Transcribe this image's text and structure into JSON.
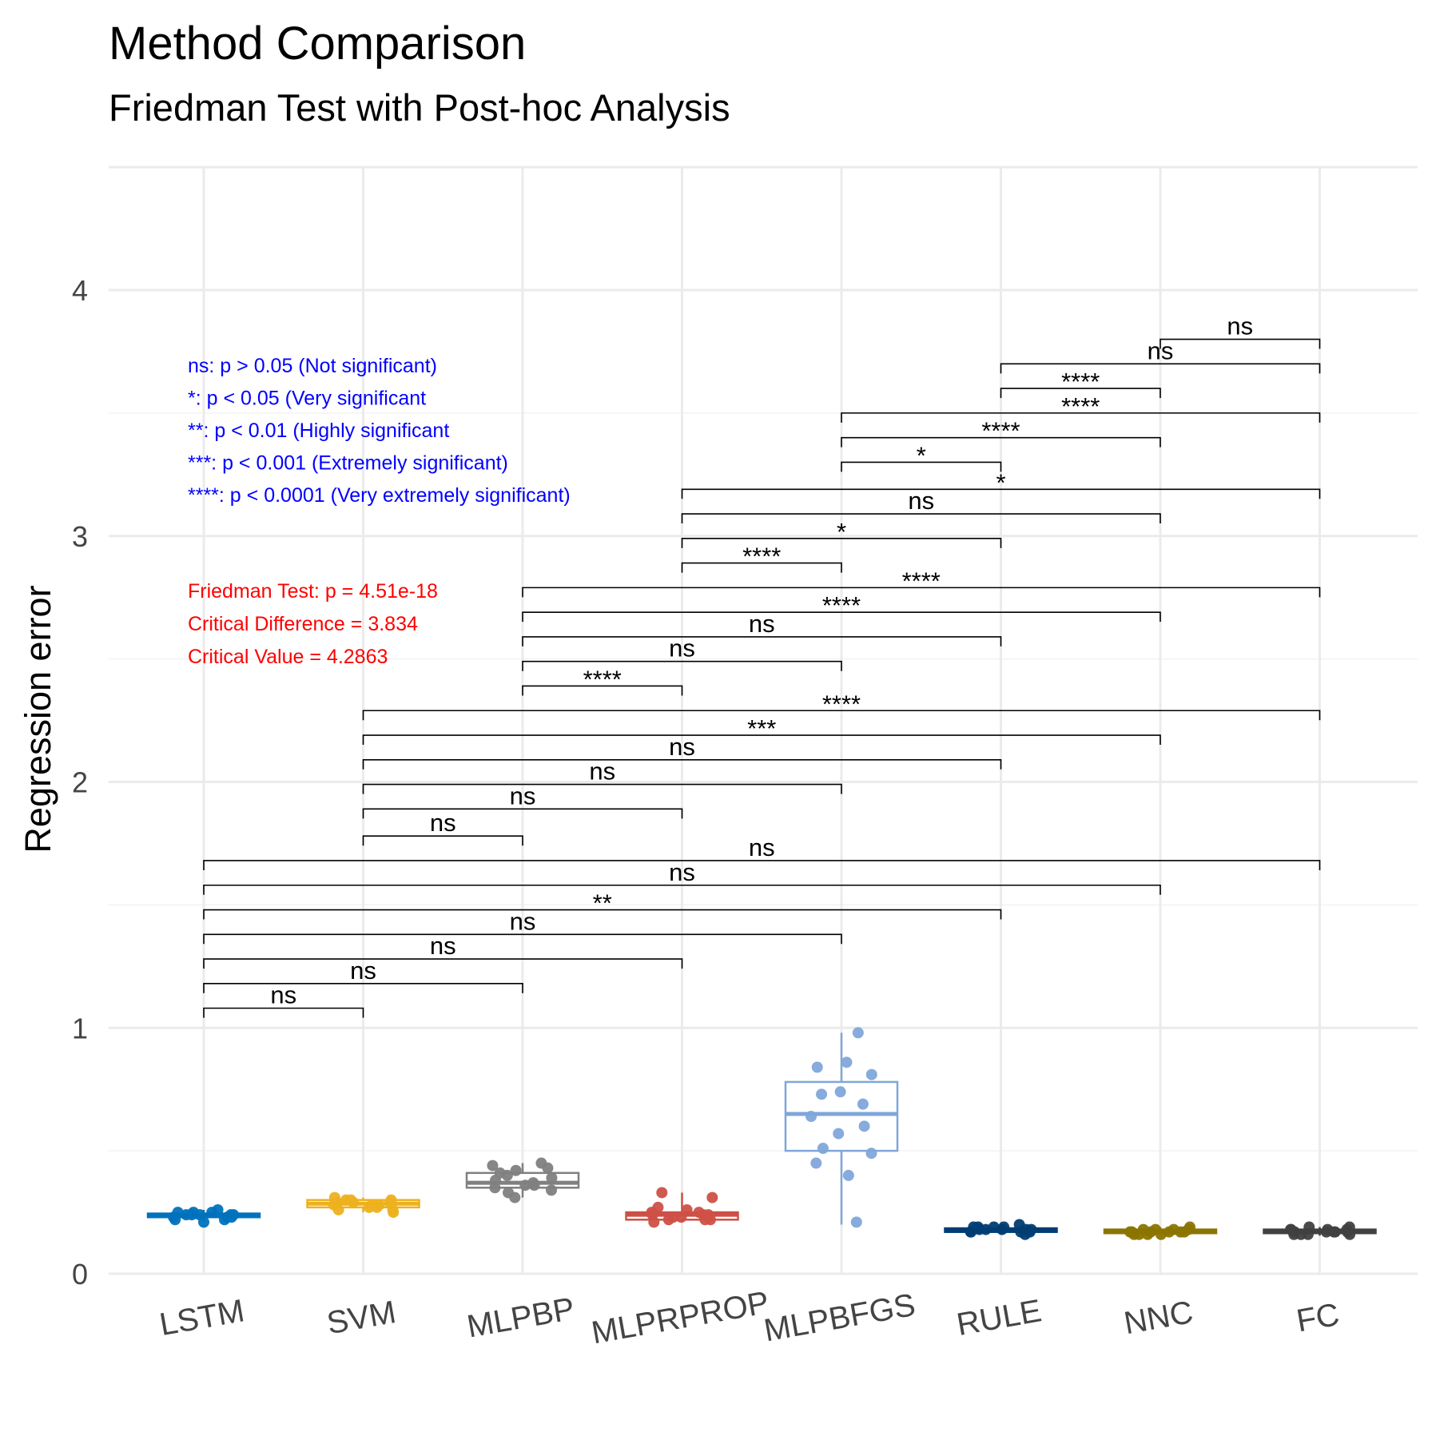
{
  "chart_data": {
    "type": "boxplot",
    "title": "Method Comparison",
    "subtitle": "Friedman Test with Post-hoc Analysis",
    "xlabel": "",
    "ylabel": "Regression error",
    "ylim": [
      0,
      4.5
    ],
    "yticks": [
      0,
      1,
      2,
      3,
      4
    ],
    "grid": true,
    "categories": [
      "LSTM",
      "SVM",
      "MLPBP",
      "MLPRPROP",
      "MLPBFGS",
      "RULE",
      "NNC",
      "FC"
    ],
    "groups": [
      {
        "name": "LSTM",
        "color": "#0072BD",
        "q1": 0.23,
        "median": 0.24,
        "q3": 0.245,
        "min": 0.21,
        "max": 0.26,
        "points": [
          0.21,
          0.22,
          0.23,
          0.23,
          0.24,
          0.24,
          0.24,
          0.25,
          0.25,
          0.26,
          0.22,
          0.23,
          0.24,
          0.25,
          0.24
        ]
      },
      {
        "name": "SVM",
        "color": "#EDB120",
        "q1": 0.27,
        "median": 0.285,
        "q3": 0.3,
        "min": 0.25,
        "max": 0.31,
        "points": [
          0.25,
          0.26,
          0.27,
          0.28,
          0.28,
          0.29,
          0.29,
          0.3,
          0.3,
          0.31,
          0.27,
          0.28,
          0.29,
          0.26,
          0.3
        ]
      },
      {
        "name": "MLPBP",
        "color": "#808080",
        "q1": 0.35,
        "median": 0.37,
        "q3": 0.41,
        "min": 0.31,
        "max": 0.45,
        "points": [
          0.31,
          0.33,
          0.34,
          0.35,
          0.36,
          0.37,
          0.38,
          0.39,
          0.4,
          0.42,
          0.43,
          0.44,
          0.45,
          0.36,
          0.41
        ]
      },
      {
        "name": "MLPRPROP",
        "color": "#CD5047",
        "q1": 0.22,
        "median": 0.24,
        "q3": 0.25,
        "min": 0.21,
        "max": 0.33,
        "points": [
          0.21,
          0.22,
          0.22,
          0.23,
          0.24,
          0.24,
          0.25,
          0.26,
          0.27,
          0.31,
          0.33,
          0.23,
          0.24,
          0.25,
          0.22
        ]
      },
      {
        "name": "MLPBFGS",
        "color": "#7FA6DA",
        "q1": 0.5,
        "median": 0.65,
        "q3": 0.78,
        "min": 0.2,
        "max": 0.98,
        "points": [
          0.21,
          0.4,
          0.45,
          0.49,
          0.51,
          0.57,
          0.6,
          0.64,
          0.69,
          0.74,
          0.73,
          0.81,
          0.84,
          0.86,
          0.98
        ]
      },
      {
        "name": "RULE",
        "color": "#003D73",
        "q1": 0.17,
        "median": 0.18,
        "q3": 0.185,
        "min": 0.16,
        "max": 0.2,
        "points": [
          0.16,
          0.17,
          0.17,
          0.18,
          0.18,
          0.18,
          0.19,
          0.19,
          0.2,
          0.17,
          0.18,
          0.19,
          0.18,
          0.17,
          0.19
        ]
      },
      {
        "name": "NNC",
        "color": "#8B7500",
        "q1": 0.165,
        "median": 0.17,
        "q3": 0.18,
        "min": 0.155,
        "max": 0.19,
        "points": [
          0.16,
          0.16,
          0.17,
          0.17,
          0.17,
          0.18,
          0.18,
          0.19,
          0.16,
          0.17,
          0.18,
          0.17,
          0.18,
          0.16,
          0.17
        ]
      },
      {
        "name": "FC",
        "color": "#404040",
        "q1": 0.165,
        "median": 0.17,
        "q3": 0.18,
        "min": 0.155,
        "max": 0.19,
        "points": [
          0.16,
          0.16,
          0.17,
          0.17,
          0.17,
          0.18,
          0.18,
          0.19,
          0.16,
          0.17,
          0.18,
          0.17,
          0.18,
          0.16,
          0.19
        ]
      }
    ],
    "comparisons": [
      {
        "from": "LSTM",
        "to": "SVM",
        "y": 1.08,
        "label": "ns"
      },
      {
        "from": "LSTM",
        "to": "MLPBP",
        "y": 1.18,
        "label": "ns"
      },
      {
        "from": "LSTM",
        "to": "MLPRPROP",
        "y": 1.28,
        "label": "ns"
      },
      {
        "from": "LSTM",
        "to": "MLPBFGS",
        "y": 1.38,
        "label": "ns"
      },
      {
        "from": "LSTM",
        "to": "RULE",
        "y": 1.48,
        "label": "**"
      },
      {
        "from": "LSTM",
        "to": "NNC",
        "y": 1.58,
        "label": "ns"
      },
      {
        "from": "LSTM",
        "to": "FC",
        "y": 1.68,
        "label": "ns"
      },
      {
        "from": "SVM",
        "to": "MLPBP",
        "y": 1.78,
        "label": "ns"
      },
      {
        "from": "SVM",
        "to": "MLPRPROP",
        "y": 1.89,
        "label": "ns"
      },
      {
        "from": "SVM",
        "to": "MLPBFGS",
        "y": 1.99,
        "label": "ns"
      },
      {
        "from": "SVM",
        "to": "RULE",
        "y": 2.09,
        "label": "ns"
      },
      {
        "from": "SVM",
        "to": "NNC",
        "y": 2.19,
        "label": "***"
      },
      {
        "from": "SVM",
        "to": "FC",
        "y": 2.29,
        "label": "****"
      },
      {
        "from": "MLPBP",
        "to": "MLPRPROP",
        "y": 2.39,
        "label": "****"
      },
      {
        "from": "MLPBP",
        "to": "MLPBFGS",
        "y": 2.49,
        "label": "ns"
      },
      {
        "from": "MLPBP",
        "to": "RULE",
        "y": 2.59,
        "label": "ns"
      },
      {
        "from": "MLPBP",
        "to": "NNC",
        "y": 2.69,
        "label": "****"
      },
      {
        "from": "MLPBP",
        "to": "FC",
        "y": 2.79,
        "label": "****"
      },
      {
        "from": "MLPRPROP",
        "to": "MLPBFGS",
        "y": 2.89,
        "label": "****"
      },
      {
        "from": "MLPRPROP",
        "to": "RULE",
        "y": 2.99,
        "label": "*"
      },
      {
        "from": "MLPRPROP",
        "to": "NNC",
        "y": 3.09,
        "label": "ns"
      },
      {
        "from": "MLPRPROP",
        "to": "FC",
        "y": 3.19,
        "label": "*"
      },
      {
        "from": "MLPBFGS",
        "to": "RULE",
        "y": 3.3,
        "label": "*"
      },
      {
        "from": "MLPBFGS",
        "to": "NNC",
        "y": 3.4,
        "label": "****"
      },
      {
        "from": "MLPBFGS",
        "to": "FC",
        "y": 3.5,
        "label": "****"
      },
      {
        "from": "RULE",
        "to": "NNC",
        "y": 3.6,
        "label": "****"
      },
      {
        "from": "RULE",
        "to": "FC",
        "y": 3.7,
        "label": "ns"
      },
      {
        "from": "NNC",
        "to": "FC",
        "y": 3.8,
        "label": "ns"
      }
    ],
    "annotations": {
      "significance_legend": [
        "ns: p > 0.05 (Not significant)",
        "*: p < 0.05 (Very significant",
        "**: p < 0.01 (Highly significant",
        "***: p < 0.001  (Extremely significant)",
        "****: p < 0.0001  (Very extremely significant)"
      ],
      "friedman": [
        "Friedman Test: p = 4.51e-18",
        "Critical Difference = 3.834",
        "Critical Value = 4.2863"
      ]
    }
  }
}
